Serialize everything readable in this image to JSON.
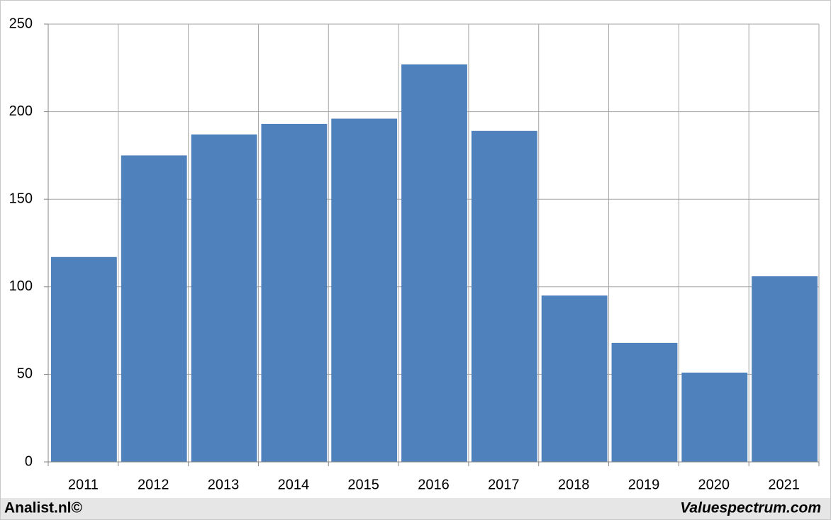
{
  "chart_data": {
    "type": "bar",
    "categories": [
      "2011",
      "2012",
      "2013",
      "2014",
      "2015",
      "2016",
      "2017",
      "2018",
      "2019",
      "2020",
      "2021"
    ],
    "values": [
      117,
      175,
      187,
      193,
      196,
      227,
      189,
      95,
      68,
      51,
      106
    ],
    "color": "#4f81bd",
    "ylim": [
      0,
      250
    ],
    "yticks": [
      0,
      50,
      100,
      150,
      200,
      250
    ],
    "grid": true
  },
  "footer": {
    "left": "Analist.nl©",
    "right": "Valuespectrum.com"
  }
}
